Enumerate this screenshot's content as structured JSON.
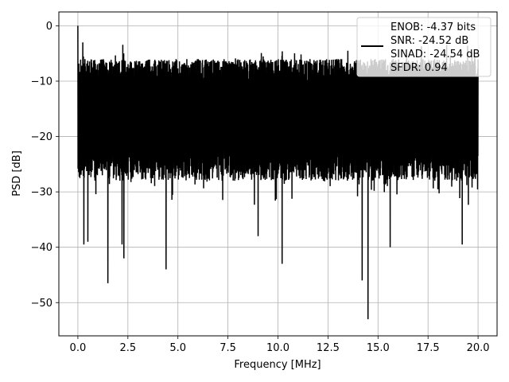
{
  "chart_data": {
    "type": "line",
    "xlabel": "Frequency [MHz]",
    "ylabel": "PSD [dB]",
    "xlim": [
      -0.95,
      20.95
    ],
    "ylim": [
      -56,
      2.5
    ],
    "xticks": [
      0.0,
      2.5,
      5.0,
      7.5,
      10.0,
      12.5,
      15.0,
      17.5,
      20.0
    ],
    "xtick_labels": [
      "0.0",
      "2.5",
      "5.0",
      "7.5",
      "10.0",
      "12.5",
      "15.0",
      "17.5",
      "20.0"
    ],
    "yticks": [
      0,
      -10,
      -20,
      -30,
      -40,
      -50
    ],
    "ytick_labels": [
      "0",
      "−10",
      "−20",
      "−30",
      "−40",
      "−50"
    ],
    "grid": true,
    "legend_position": "top-right",
    "series": [
      {
        "color": "#000000",
        "band_upper_db": -8.8,
        "band_lower_db": -23.5,
        "peaks": [
          {
            "x": 0.0,
            "y": 0.0
          },
          {
            "x": 0.25,
            "y": -3.0
          },
          {
            "x": 2.3,
            "y": -5.0
          },
          {
            "x": 13.5,
            "y": -4.5
          },
          {
            "x": 19.7,
            "y": -4.8
          }
        ],
        "dips": [
          {
            "x": 0.3,
            "y": -39.5
          },
          {
            "x": 0.5,
            "y": -39.0
          },
          {
            "x": 1.5,
            "y": -46.5
          },
          {
            "x": 2.2,
            "y": -39.5
          },
          {
            "x": 2.3,
            "y": -42.0
          },
          {
            "x": 4.4,
            "y": -44.0
          },
          {
            "x": 9.0,
            "y": -38.0
          },
          {
            "x": 10.2,
            "y": -43.0
          },
          {
            "x": 14.2,
            "y": -46.0
          },
          {
            "x": 14.5,
            "y": -53.0
          },
          {
            "x": 15.6,
            "y": -40.0
          },
          {
            "x": 19.2,
            "y": -39.5
          }
        ]
      }
    ],
    "legend_lines": [
      "ENOB: -4.37 bits",
      "SNR: -24.52 dB",
      "SINAD: -24.54 dB",
      "SFDR: 0.94"
    ]
  }
}
